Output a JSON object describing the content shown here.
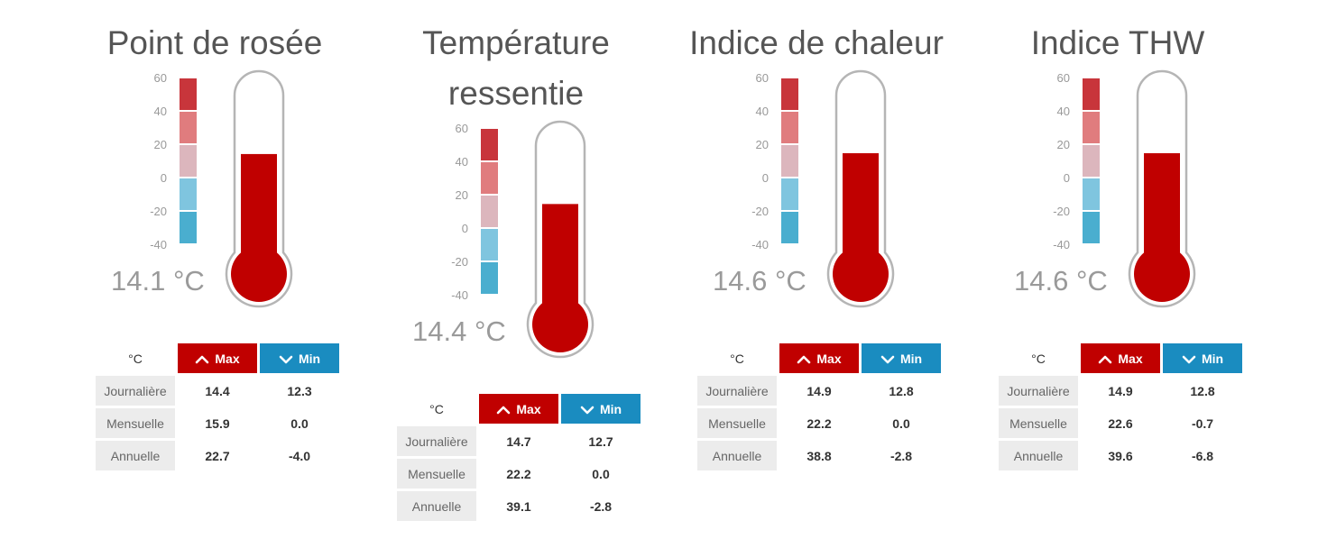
{
  "colors": {
    "scale": [
      "#c8353b",
      "#e07c7e",
      "#dcb6bd",
      "#7fc5df",
      "#4aaecf"
    ],
    "mercury": "#c00000",
    "max_header": "#c00000",
    "min_header": "#1a8cc0",
    "outline": "#b5b5b5"
  },
  "icons": {
    "max": "chevron-up-icon",
    "min": "chevron-down-icon"
  },
  "panels": [
    {
      "title": "Point de rosée",
      "scale_labels": [
        "60",
        "40",
        "20",
        "0",
        "-20",
        "-40"
      ],
      "reading": "14.1 °C",
      "value": 14.1,
      "table": {
        "unit": "°C",
        "max_label": "Max",
        "min_label": "Min",
        "rows": [
          {
            "label": "Journalière",
            "max": "14.4",
            "min": "12.3"
          },
          {
            "label": "Mensuelle",
            "max": "15.9",
            "min": "0.0"
          },
          {
            "label": "Annuelle",
            "max": "22.7",
            "min": "-4.0"
          }
        ]
      }
    },
    {
      "title": "Température ressentie",
      "scale_labels": [
        "60",
        "40",
        "20",
        "0",
        "-20",
        "-40"
      ],
      "reading": "14.4 °C",
      "value": 14.4,
      "table": {
        "unit": "°C",
        "max_label": "Max",
        "min_label": "Min",
        "rows": [
          {
            "label": "Journalière",
            "max": "14.7",
            "min": "12.7"
          },
          {
            "label": "Mensuelle",
            "max": "22.2",
            "min": "0.0"
          },
          {
            "label": "Annuelle",
            "max": "39.1",
            "min": "-2.8"
          }
        ]
      }
    },
    {
      "title": "Indice de chaleur",
      "scale_labels": [
        "60",
        "40",
        "20",
        "0",
        "-20",
        "-40"
      ],
      "reading": "14.6 °C",
      "value": 14.6,
      "table": {
        "unit": "°C",
        "max_label": "Max",
        "min_label": "Min",
        "rows": [
          {
            "label": "Journalière",
            "max": "14.9",
            "min": "12.8"
          },
          {
            "label": "Mensuelle",
            "max": "22.2",
            "min": "0.0"
          },
          {
            "label": "Annuelle",
            "max": "38.8",
            "min": "-2.8"
          }
        ]
      }
    },
    {
      "title": "Indice THW",
      "scale_labels": [
        "60",
        "40",
        "20",
        "0",
        "-20",
        "-40"
      ],
      "reading": "14.6 °C",
      "value": 14.6,
      "table": {
        "unit": "°C",
        "max_label": "Max",
        "min_label": "Min",
        "rows": [
          {
            "label": "Journalière",
            "max": "14.9",
            "min": "12.8"
          },
          {
            "label": "Mensuelle",
            "max": "22.6",
            "min": "-0.7"
          },
          {
            "label": "Annuelle",
            "max": "39.6",
            "min": "-6.8"
          }
        ]
      }
    }
  ]
}
